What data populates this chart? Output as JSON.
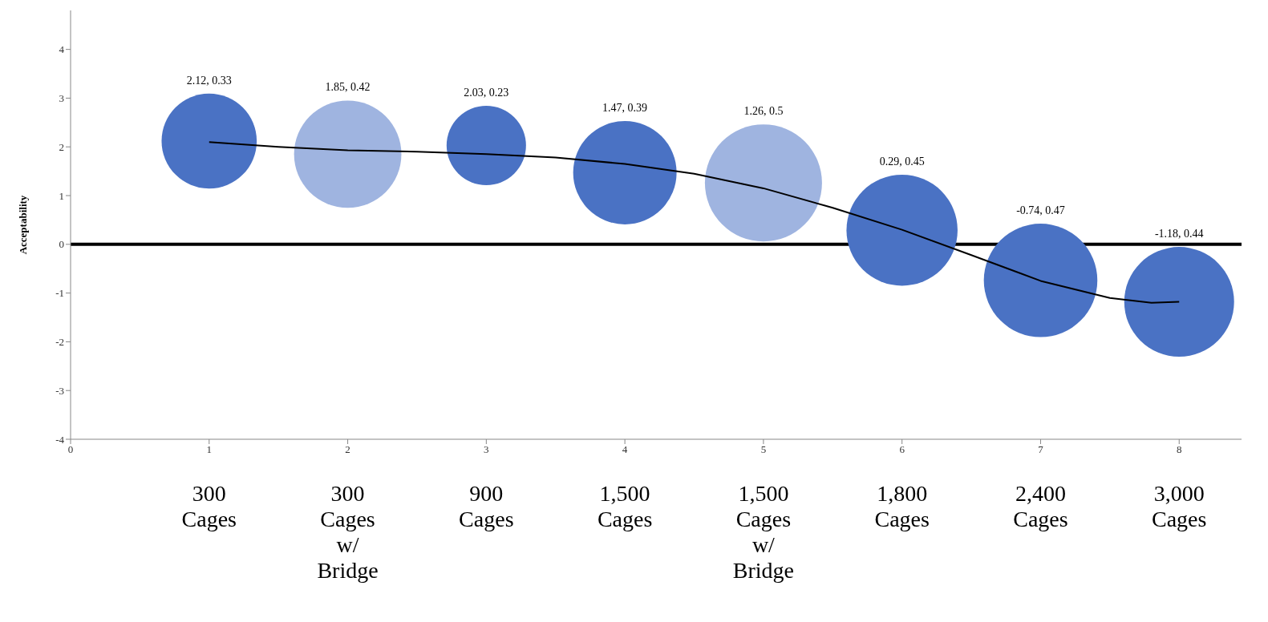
{
  "chart_data": {
    "type": "bubble",
    "ylabel": "Acceptability",
    "x": [
      1,
      2,
      3,
      4,
      5,
      6,
      7,
      8
    ],
    "values": [
      2.12,
      1.85,
      2.03,
      1.47,
      1.26,
      0.29,
      -0.74,
      -1.18
    ],
    "sizes": [
      0.66,
      0.84,
      0.46,
      0.78,
      1,
      0.9,
      0.94,
      0.88
    ],
    "colors": [
      "#4a72c4",
      "#9fb4e0",
      "#4a72c4",
      "#4a72c4",
      "#9fb4e0",
      "#4a72c4",
      "#4a72c4",
      "#4a72c4"
    ],
    "value_labels": [
      "2.12, 0.33",
      "1.85, 0.42",
      "2.03, 0.23",
      "1.47, 0.39",
      "1.26, 0.5",
      "0.29, 0.45",
      "-0.74, 0.47",
      "-1.18, 0.44"
    ],
    "series": [
      {
        "type": "line",
        "color": "#000000",
        "x": [
          1,
          1.5,
          2,
          2.5,
          3,
          3.5,
          4,
          4.5,
          5,
          5.5,
          6,
          6.5,
          7,
          7.5,
          7.8,
          8
        ],
        "values": [
          2.1,
          2.0,
          1.93,
          1.9,
          1.85,
          1.78,
          1.65,
          1.45,
          1.15,
          0.75,
          0.3,
          -0.22,
          -0.75,
          -1.1,
          -1.2,
          -1.18
        ]
      }
    ],
    "xlim": [
      0,
      8.45
    ],
    "xticks": [
      0,
      1,
      2,
      3,
      4,
      5,
      6,
      7,
      8
    ],
    "ylim": [
      -4,
      4.8
    ],
    "yticks": [
      -4,
      -3,
      -2,
      -1,
      0,
      1,
      2,
      3,
      4
    ],
    "ref_lines": [
      {
        "axis": "y",
        "value": 0,
        "color": "#000000"
      }
    ],
    "annotations": [
      "300 Cages",
      "300 Cages w/ Bridge",
      "900 Cages",
      "1,500 Cages",
      "1,500 Cages w/ Bridge",
      "1,800 Cages",
      "2,400 Cages",
      "3,000 Cages"
    ],
    "grid": false,
    "legend": false
  }
}
